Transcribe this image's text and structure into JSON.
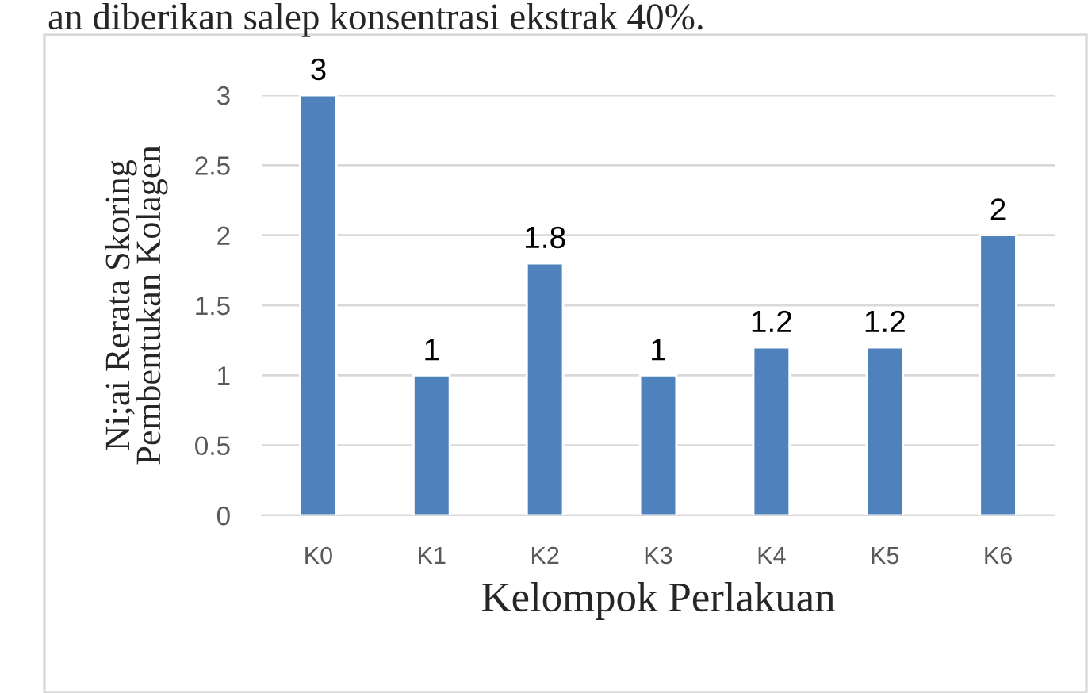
{
  "chart_data": {
    "type": "bar",
    "categories": [
      "K0",
      "K1",
      "K2",
      "K3",
      "K4",
      "K5",
      "K6"
    ],
    "values": [
      3,
      1,
      1.8,
      1,
      1.2,
      1.2,
      2
    ],
    "color": "#4f81bd",
    "xlabel": "Kelompok Perlakuan",
    "ylabel": "Ni;ai Rerata Skoring\nPembentukan Kolagen",
    "ylim": [
      0,
      3
    ],
    "yticks": [
      0,
      0.5,
      1,
      1.5,
      2,
      2.5,
      3
    ],
    "grid": "y",
    "data_labels": true,
    "annotations": [
      "an diberikan salep konsentrasi ekstrak 40%."
    ]
  }
}
